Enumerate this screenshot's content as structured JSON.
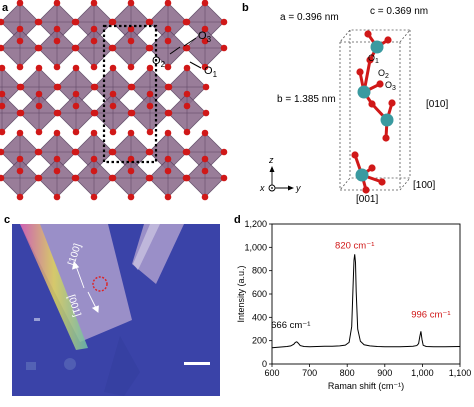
{
  "panel_labels": {
    "a": "a",
    "b": "b",
    "c": "c",
    "d": "d"
  },
  "panel_a": {
    "labels": {
      "o3": "O",
      "o3_sub": "3",
      "o2": "O",
      "o2_sub": "2",
      "o1": "O",
      "o1_sub": "1"
    },
    "colors": {
      "octahedron": "#8e6f8f",
      "octahedron_edge": "#5b4361",
      "oxygen": "#d01818"
    }
  },
  "panel_b": {
    "lattice": {
      "a": "a = 0.396 nm",
      "b": "b = 1.385 nm",
      "c": "c = 0.369 nm"
    },
    "directions": {
      "d010": "[010]",
      "d100": "[100]",
      "d001": "[001]"
    },
    "atom_labels": {
      "o1": "O",
      "o1_sub": "1",
      "o2": "O",
      "o2_sub": "2",
      "o3": "O",
      "o3_sub": "3"
    },
    "axes": {
      "z": "z",
      "x": "x",
      "y": "y"
    },
    "colors": {
      "metal": "#3a9aa0",
      "oxygen": "#d01818",
      "box": "#555555"
    }
  },
  "panel_c": {
    "labels": {
      "l100": "[100]",
      "l001": "[001]"
    },
    "colors": {
      "background": "#3a43a8",
      "flake": "#9a8fc8",
      "scale_bar": "#ffffff",
      "marker": "#e02020"
    }
  },
  "chart_data": {
    "type": "line",
    "xlabel": "Raman shift (cm⁻¹)",
    "ylabel": "Intensity (a.u.)",
    "xlim": [
      600,
      1100
    ],
    "ylim": [
      0,
      1200
    ],
    "x_ticks": [
      "600",
      "700",
      "800",
      "900",
      "1,000",
      "1,100"
    ],
    "y_ticks": [
      "0",
      "200",
      "400",
      "600",
      "800",
      "1,000",
      "1,200"
    ],
    "peaks": [
      {
        "x": 666,
        "y": 190,
        "label": "666 cm⁻¹",
        "color": "#000000"
      },
      {
        "x": 820,
        "y": 940,
        "label": "820 cm⁻¹",
        "color": "#d01818"
      },
      {
        "x": 996,
        "y": 280,
        "label": "996 cm⁻¹",
        "color": "#d01818"
      }
    ],
    "series": [
      {
        "x": [
          600,
          620,
          640,
          650,
          658,
          662,
          666,
          670,
          675,
          685,
          700,
          720,
          740,
          760,
          780,
          795,
          805,
          812,
          816,
          818,
          820,
          822,
          824,
          828,
          835,
          845,
          860,
          880,
          900,
          920,
          940,
          960,
          975,
          985,
          990,
          993,
          996,
          999,
          1002,
          1010,
          1030,
          1060,
          1100
        ],
        "y": [
          140,
          145,
          150,
          155,
          170,
          185,
          190,
          178,
          158,
          150,
          148,
          150,
          152,
          152,
          155,
          162,
          185,
          320,
          700,
          890,
          940,
          870,
          620,
          300,
          195,
          165,
          155,
          150,
          148,
          148,
          148,
          150,
          152,
          158,
          175,
          235,
          280,
          210,
          160,
          150,
          148,
          148,
          150
        ]
      }
    ],
    "grid": false
  }
}
